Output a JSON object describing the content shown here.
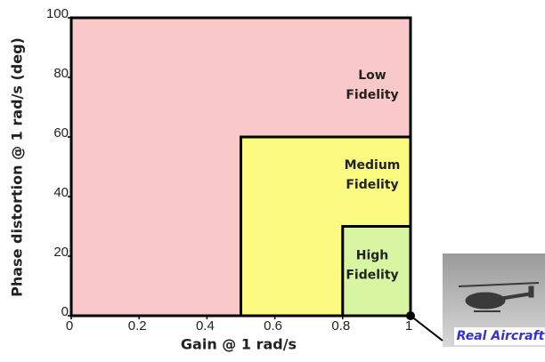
{
  "chart_data": {
    "type": "region",
    "xlabel": "Gain @ 1 rad/s",
    "ylabel": "Phase distortion @ 1 rad/s (deg)",
    "xlim": [
      0,
      1
    ],
    "ylim": [
      0,
      100
    ],
    "xticks": [
      0,
      0.2,
      0.4,
      0.6,
      0.8,
      1
    ],
    "yticks": [
      0,
      20,
      40,
      60,
      80,
      100
    ],
    "regions": [
      {
        "label_lines": [
          "Low",
          "Fidelity"
        ],
        "x": [
          0,
          1
        ],
        "y": [
          0,
          100
        ],
        "color": "#f9c9c9"
      },
      {
        "label_lines": [
          "Medium",
          "Fidelity"
        ],
        "x": [
          0.5,
          1
        ],
        "y": [
          0,
          60
        ],
        "color": "#fbfb82"
      },
      {
        "label_lines": [
          "High",
          "Fidelity"
        ],
        "x": [
          0.8,
          1
        ],
        "y": [
          0,
          30
        ],
        "color": "#d8f5a2"
      }
    ],
    "point": {
      "x": 1,
      "y": 0,
      "label": "Real Aircraft",
      "color": "#000000"
    }
  }
}
